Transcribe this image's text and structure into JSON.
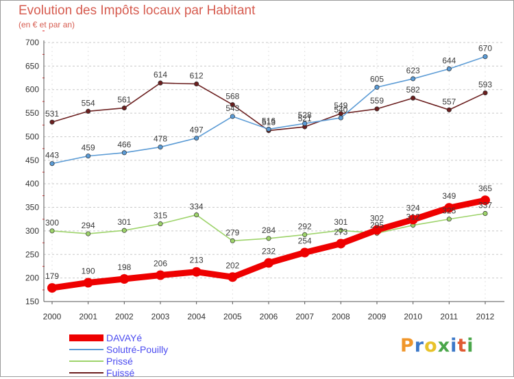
{
  "title": "Evolution des Impôts locaux par Habitant",
  "subtitle": "(en € et par an)",
  "logo": {
    "letters": [
      "P",
      "r",
      "o",
      "x",
      "i",
      "t",
      "i"
    ],
    "colors": [
      "#f0962a",
      "#3c78c8",
      "#e8c22a",
      "#4aa64a",
      "#3c78c8",
      "#e05a32",
      "#4aa64a"
    ]
  },
  "chart_data": {
    "type": "line",
    "x": [
      "2000",
      "2001",
      "2002",
      "2003",
      "2004",
      "2005",
      "2006",
      "2007",
      "2008",
      "2009",
      "2010",
      "2011",
      "2012"
    ],
    "yticks": [
      "150",
      "200",
      "250",
      "300",
      "350",
      "400",
      "450",
      "500",
      "550",
      "600",
      "650",
      "700"
    ],
    "ylim": [
      150,
      700
    ],
    "grid": "horizontal-dashed",
    "legend_position": "bottom-left",
    "series": [
      {
        "name": "Fuissé",
        "color": "#6b1f1f",
        "values": [
          531,
          554,
          561,
          614,
          612,
          568,
          513,
          521,
          549,
          559,
          582,
          557,
          593
        ]
      },
      {
        "name": "Solutré-Pouilly",
        "color": "#5b9bd5",
        "values": [
          443,
          459,
          466,
          478,
          497,
          543,
          516,
          528,
          540,
          605,
          623,
          644,
          670
        ]
      },
      {
        "name": "Prissé",
        "color": "#9dd36a",
        "values": [
          300,
          294,
          301,
          315,
          334,
          279,
          284,
          292,
          301,
          295,
          312,
          325,
          337
        ]
      },
      {
        "name": "DAVAYé",
        "color": "#ee0000",
        "values": [
          179,
          190,
          198,
          206,
          213,
          202,
          232,
          254,
          273,
          302,
          324,
          349,
          365
        ]
      }
    ]
  },
  "legend": [
    {
      "label": "DAVAYé",
      "color": "#ee0000",
      "thickness": 10
    },
    {
      "label": "Solutré-Pouilly",
      "color": "#5b9bd5",
      "thickness": 2
    },
    {
      "label": "Prissé",
      "color": "#9dd36a",
      "thickness": 2
    },
    {
      "label": "Fuissé",
      "color": "#6b1f1f",
      "thickness": 2
    }
  ]
}
